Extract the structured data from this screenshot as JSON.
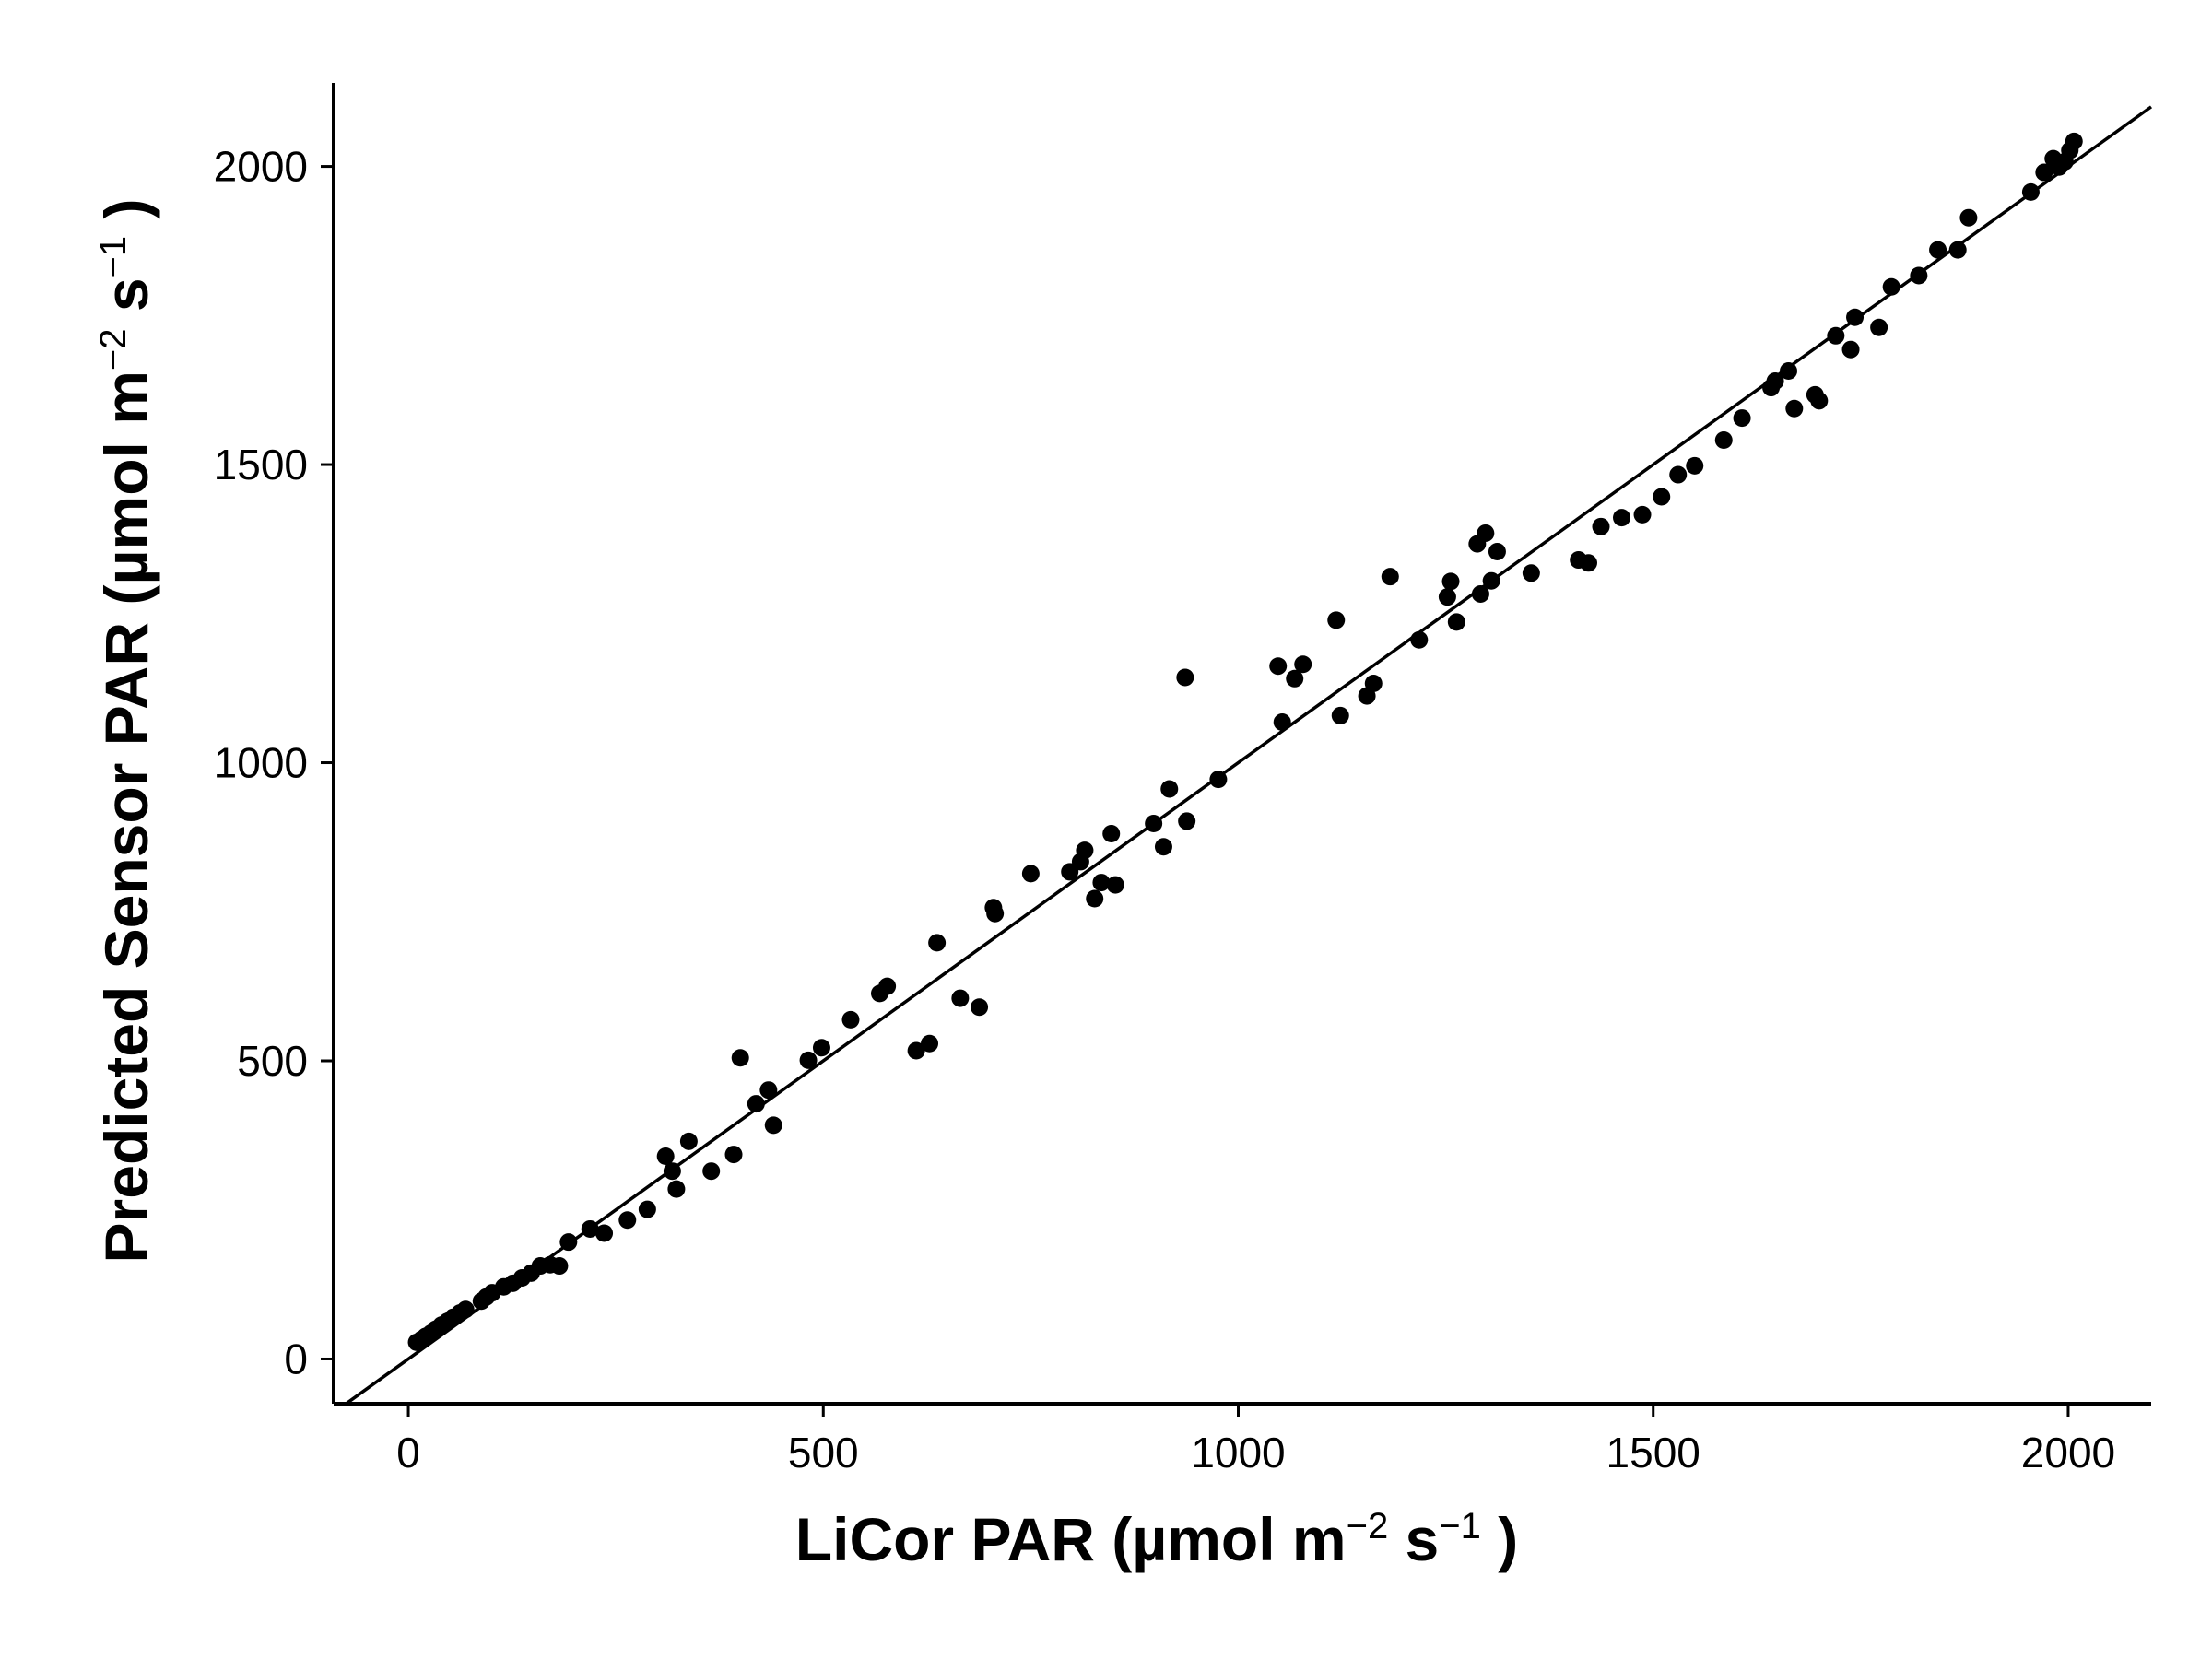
{
  "chart_data": {
    "type": "scatter",
    "title": "",
    "xlabel": {
      "main": "LiCor PAR (µmol  m",
      "exp1": "−2",
      "mid": " s",
      "exp2": "−1",
      "end": " )"
    },
    "ylabel": {
      "main": "Predicted Sensor PAR (µmol  m",
      "exp1": "−2",
      "mid": " s",
      "exp2": "−1",
      "end": " )"
    },
    "xlim": [
      -90,
      2100
    ],
    "ylim": [
      -75,
      2140
    ],
    "xticks": [
      0,
      500,
      1000,
      1500,
      2000
    ],
    "yticks": [
      0,
      500,
      1000,
      1500,
      2000
    ],
    "xtick_labels": [
      "0",
      "500",
      "1000",
      "1500",
      "2000"
    ],
    "ytick_labels": [
      "0",
      "500",
      "1000",
      "1500",
      "2000"
    ],
    "grid": false,
    "legend": "none",
    "reference_line": {
      "type": "identity",
      "slope": 1,
      "intercept": 0
    },
    "point_color": "#000000",
    "line_color": "#000000",
    "points": [
      [
        10,
        28
      ],
      [
        16,
        33
      ],
      [
        21,
        38
      ],
      [
        27,
        43
      ],
      [
        33,
        50
      ],
      [
        40,
        57
      ],
      [
        47,
        63
      ],
      [
        54,
        70
      ],
      [
        62,
        77
      ],
      [
        69,
        83
      ],
      [
        88,
        97
      ],
      [
        94,
        104
      ],
      [
        101,
        111
      ],
      [
        115,
        121
      ],
      [
        126,
        127
      ],
      [
        137,
        136
      ],
      [
        148,
        144
      ],
      [
        159,
        156
      ],
      [
        171,
        158
      ],
      [
        182,
        156
      ],
      [
        193,
        196
      ],
      [
        219,
        218
      ],
      [
        236,
        211
      ],
      [
        264,
        233
      ],
      [
        288,
        251
      ],
      [
        310,
        340
      ],
      [
        318,
        315
      ],
      [
        323,
        285
      ],
      [
        338,
        365
      ],
      [
        365,
        315
      ],
      [
        392,
        343
      ],
      [
        400,
        505
      ],
      [
        419,
        428
      ],
      [
        434,
        451
      ],
      [
        440,
        392
      ],
      [
        482,
        501
      ],
      [
        498,
        522
      ],
      [
        533,
        569
      ],
      [
        568,
        613
      ],
      [
        577,
        625
      ],
      [
        612,
        517
      ],
      [
        628,
        529
      ],
      [
        637,
        698
      ],
      [
        665,
        605
      ],
      [
        688,
        590
      ],
      [
        705,
        757
      ],
      [
        707,
        747
      ],
      [
        750,
        814
      ],
      [
        797,
        817
      ],
      [
        810,
        834
      ],
      [
        815,
        853
      ],
      [
        827,
        772
      ],
      [
        835,
        799
      ],
      [
        847,
        881
      ],
      [
        852,
        795
      ],
      [
        898,
        898
      ],
      [
        910,
        859
      ],
      [
        917,
        956
      ],
      [
        936,
        1143
      ],
      [
        938,
        902
      ],
      [
        976,
        972
      ],
      [
        1048,
        1162
      ],
      [
        1053,
        1068
      ],
      [
        1068,
        1141
      ],
      [
        1078,
        1165
      ],
      [
        1118,
        1239
      ],
      [
        1123,
        1079
      ],
      [
        1155,
        1112
      ],
      [
        1163,
        1133
      ],
      [
        1183,
        1312
      ],
      [
        1218,
        1206
      ],
      [
        1252,
        1278
      ],
      [
        1256,
        1304
      ],
      [
        1263,
        1236
      ],
      [
        1288,
        1367
      ],
      [
        1292,
        1283
      ],
      [
        1298,
        1385
      ],
      [
        1305,
        1305
      ],
      [
        1312,
        1354
      ],
      [
        1353,
        1318
      ],
      [
        1410,
        1340
      ],
      [
        1422,
        1335
      ],
      [
        1437,
        1396
      ],
      [
        1462,
        1411
      ],
      [
        1487,
        1416
      ],
      [
        1510,
        1446
      ],
      [
        1530,
        1483
      ],
      [
        1550,
        1498
      ],
      [
        1585,
        1541
      ],
      [
        1607,
        1578
      ],
      [
        1642,
        1629
      ],
      [
        1647,
        1640
      ],
      [
        1663,
        1657
      ],
      [
        1670,
        1594
      ],
      [
        1695,
        1617
      ],
      [
        1700,
        1607
      ],
      [
        1720,
        1716
      ],
      [
        1738,
        1693
      ],
      [
        1743,
        1747
      ],
      [
        1772,
        1730
      ],
      [
        1787,
        1798
      ],
      [
        1820,
        1817
      ],
      [
        1843,
        1860
      ],
      [
        1867,
        1860
      ],
      [
        1880,
        1914
      ],
      [
        1955,
        1957
      ],
      [
        1971,
        1990
      ],
      [
        1982,
        2013
      ],
      [
        1989,
        1999
      ],
      [
        1996,
        2008
      ],
      [
        2002,
        2027
      ],
      [
        2007,
        2042
      ]
    ]
  }
}
